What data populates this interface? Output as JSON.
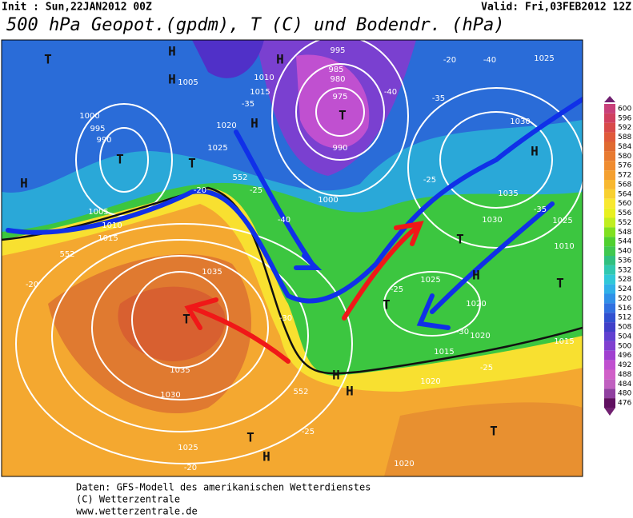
{
  "header": {
    "init": "Init : Sun,22JAN2012 00Z",
    "valid": "Valid: Fri,03FEB2012 12Z",
    "title": "500 hPa Geopot.(gpdm), T (C) und Bodendr. (hPa)"
  },
  "legend": {
    "levels": [
      600,
      596,
      592,
      588,
      584,
      580,
      576,
      572,
      568,
      564,
      560,
      556,
      552,
      548,
      544,
      540,
      536,
      532,
      528,
      524,
      520,
      516,
      512,
      508,
      504,
      500,
      496,
      492,
      488,
      484,
      480,
      476
    ]
  },
  "map": {
    "labels": [
      "T",
      "H",
      "H",
      "H",
      "T",
      "T",
      "H",
      "T",
      "H",
      "T",
      "T",
      "T",
      "H",
      "T",
      "H",
      "H",
      "T",
      "H",
      "T",
      "H",
      "1005",
      "1010",
      "1015",
      "1020",
      "1025",
      "995",
      "985",
      "980",
      "975",
      "990",
      "1000",
      "1030",
      "1025",
      "1035",
      "1030",
      "1010",
      "1000",
      "995",
      "990",
      "1005",
      "1010",
      "1015",
      "1035",
      "1035",
      "1030",
      "1025",
      "1025",
      "1020",
      "1015",
      "1020",
      "1020",
      "1020",
      "1025",
      "1015",
      "-40",
      "-35",
      "-40",
      "-35",
      "-25",
      "-20",
      "-20",
      "-25",
      "-30",
      "-25",
      "-25",
      "-30",
      "-20",
      "-25",
      "-20",
      "-40",
      "-35",
      "552",
      "552",
      "552"
    ]
  },
  "footer": {
    "lines": [
      "Daten: GFS-Modell des amerikanischen Wetterdienstes",
      "(C) Wetterzentrale",
      "www.wetterzentrale.de"
    ]
  }
}
